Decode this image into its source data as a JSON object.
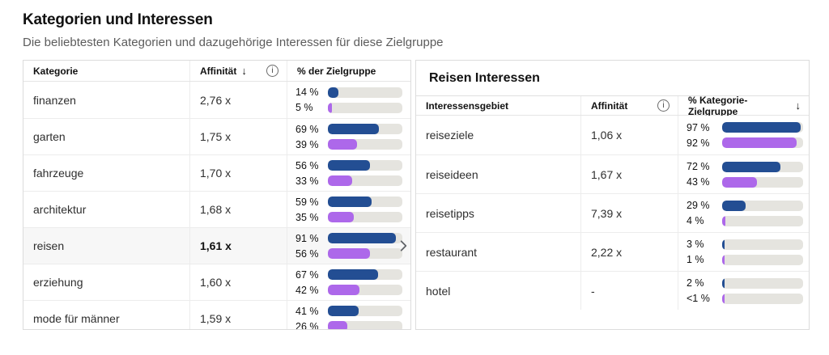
{
  "page": {
    "title": "Kategorien und Interessen",
    "subtitle": "Die beliebtesten Kategorien und dazugehörige Interessen für diese Zielgruppe"
  },
  "colors": {
    "blue": "#234e93",
    "purple": "#ad68ea",
    "track": "#e5e4df"
  },
  "icons": {
    "sort_descending": "↓",
    "info": "i",
    "chevron_right": "›"
  },
  "categories_table": {
    "columns": {
      "category": "Kategorie",
      "affinity": "Affinität",
      "percent": "% der Zielgruppe"
    },
    "rows": [
      {
        "name": "finanzen",
        "affinity": "2,76 x",
        "blue_label": "14 %",
        "blue_pct": 14,
        "purple_label": "5 %",
        "purple_pct": 5,
        "selected": false
      },
      {
        "name": "garten",
        "affinity": "1,75 x",
        "blue_label": "69 %",
        "blue_pct": 69,
        "purple_label": "39 %",
        "purple_pct": 39,
        "selected": false
      },
      {
        "name": "fahrzeuge",
        "affinity": "1,70 x",
        "blue_label": "56 %",
        "blue_pct": 56,
        "purple_label": "33 %",
        "purple_pct": 33,
        "selected": false
      },
      {
        "name": "architektur",
        "affinity": "1,68 x",
        "blue_label": "59 %",
        "blue_pct": 59,
        "purple_label": "35 %",
        "purple_pct": 35,
        "selected": false
      },
      {
        "name": "reisen",
        "affinity": "1,61 x",
        "blue_label": "91 %",
        "blue_pct": 91,
        "purple_label": "56 %",
        "purple_pct": 56,
        "selected": true
      },
      {
        "name": "erziehung",
        "affinity": "1,60 x",
        "blue_label": "67 %",
        "blue_pct": 67,
        "purple_label": "42 %",
        "purple_pct": 42,
        "selected": false
      },
      {
        "name": "mode für männer",
        "affinity": "1,59 x",
        "blue_label": "41 %",
        "blue_pct": 41,
        "purple_label": "26 %",
        "purple_pct": 26,
        "selected": false
      }
    ]
  },
  "interests_table": {
    "title": "Reisen Interessen",
    "columns": {
      "interest": "Interessensgebiet",
      "affinity": "Affinität",
      "percent": "% Kategorie-Zielgruppe"
    },
    "rows": [
      {
        "name": "reiseziele",
        "affinity": "1,06 x",
        "blue_label": "97 %",
        "blue_pct": 97,
        "purple_label": "92 %",
        "purple_pct": 92
      },
      {
        "name": "reiseideen",
        "affinity": "1,67 x",
        "blue_label": "72 %",
        "blue_pct": 72,
        "purple_label": "43 %",
        "purple_pct": 43
      },
      {
        "name": "reisetipps",
        "affinity": "7,39 x",
        "blue_label": "29 %",
        "blue_pct": 29,
        "purple_label": "4 %",
        "purple_pct": 4
      },
      {
        "name": "restaurant",
        "affinity": "2,22 x",
        "blue_label": "3 %",
        "blue_pct": 3,
        "purple_label": "1 %",
        "purple_pct": 1
      },
      {
        "name": "hotel",
        "affinity": "-",
        "blue_label": "2 %",
        "blue_pct": 2,
        "purple_label": "<1 %",
        "purple_pct": 0.8
      }
    ]
  }
}
